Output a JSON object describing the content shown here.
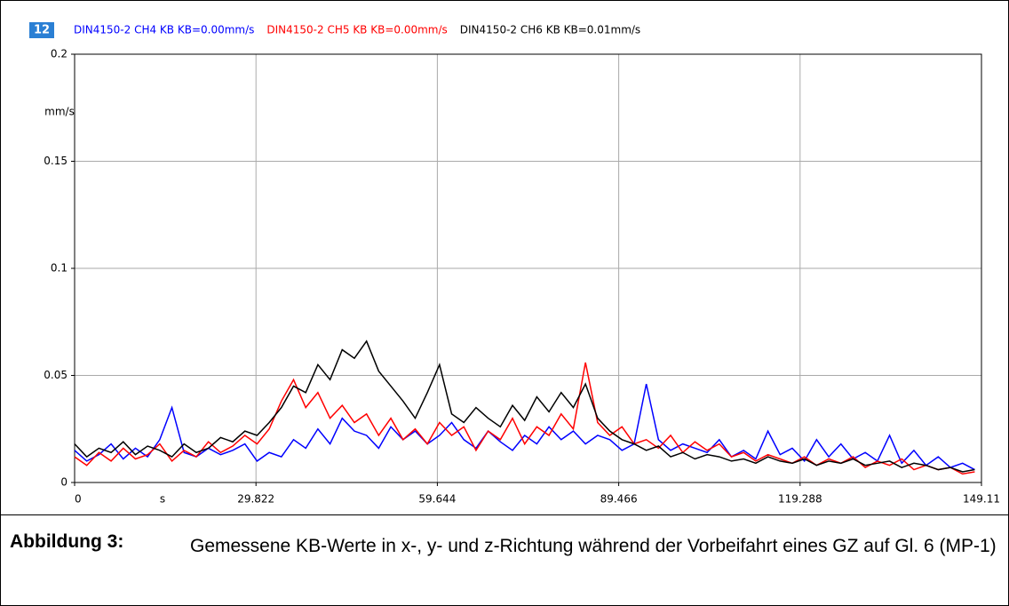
{
  "chart_data": {
    "type": "line",
    "panel_number": "12",
    "y_unit": "mm/s",
    "x_unit": "s",
    "x": [
      0,
      2,
      4,
      6,
      8,
      10,
      12,
      14,
      16,
      18,
      20,
      22,
      24,
      26,
      28,
      30,
      32,
      34,
      36,
      38,
      40,
      42,
      44,
      46,
      48,
      50,
      52,
      54,
      56,
      58,
      60,
      62,
      64,
      66,
      68,
      70,
      72,
      74,
      76,
      78,
      80,
      82,
      84,
      86,
      88,
      90,
      92,
      94,
      96,
      98,
      100,
      102,
      104,
      106,
      108,
      110,
      112,
      114,
      116,
      118,
      120,
      122,
      124,
      126,
      128,
      130,
      132,
      134,
      136,
      138,
      140,
      142,
      144,
      146,
      148
    ],
    "series": [
      {
        "name": "DIN4150-2 CH4 KB KB=0.00mm/s",
        "color": "#0000ff",
        "values": [
          0.015,
          0.01,
          0.013,
          0.018,
          0.011,
          0.016,
          0.012,
          0.02,
          0.035,
          0.014,
          0.012,
          0.016,
          0.013,
          0.015,
          0.018,
          0.01,
          0.014,
          0.012,
          0.02,
          0.016,
          0.025,
          0.018,
          0.03,
          0.024,
          0.022,
          0.016,
          0.026,
          0.02,
          0.024,
          0.018,
          0.022,
          0.028,
          0.02,
          0.016,
          0.024,
          0.019,
          0.015,
          0.022,
          0.018,
          0.026,
          0.02,
          0.024,
          0.018,
          0.022,
          0.02,
          0.015,
          0.018,
          0.046,
          0.02,
          0.015,
          0.018,
          0.016,
          0.014,
          0.02,
          0.012,
          0.015,
          0.011,
          0.024,
          0.013,
          0.016,
          0.01,
          0.02,
          0.012,
          0.018,
          0.011,
          0.014,
          0.01,
          0.022,
          0.009,
          0.015,
          0.008,
          0.012,
          0.007,
          0.009,
          0.006
        ]
      },
      {
        "name": "DIN4150-2 CH5 KB KB=0.00mm/s",
        "color": "#ff0000",
        "values": [
          0.012,
          0.008,
          0.014,
          0.01,
          0.016,
          0.011,
          0.013,
          0.018,
          0.01,
          0.015,
          0.012,
          0.019,
          0.014,
          0.017,
          0.022,
          0.018,
          0.025,
          0.038,
          0.048,
          0.035,
          0.042,
          0.03,
          0.036,
          0.028,
          0.032,
          0.022,
          0.03,
          0.02,
          0.025,
          0.018,
          0.028,
          0.022,
          0.026,
          0.015,
          0.024,
          0.02,
          0.03,
          0.018,
          0.026,
          0.022,
          0.032,
          0.025,
          0.056,
          0.028,
          0.022,
          0.026,
          0.018,
          0.02,
          0.016,
          0.022,
          0.014,
          0.019,
          0.015,
          0.018,
          0.012,
          0.014,
          0.01,
          0.013,
          0.011,
          0.009,
          0.012,
          0.008,
          0.011,
          0.009,
          0.012,
          0.007,
          0.01,
          0.008,
          0.011,
          0.006,
          0.008,
          0.006,
          0.007,
          0.004,
          0.005
        ]
      },
      {
        "name": "DIN4150-2 CH6 KB KB=0.01mm/s",
        "color": "#000000",
        "values": [
          0.018,
          0.012,
          0.016,
          0.014,
          0.019,
          0.013,
          0.017,
          0.015,
          0.012,
          0.018,
          0.014,
          0.016,
          0.021,
          0.019,
          0.024,
          0.022,
          0.028,
          0.035,
          0.045,
          0.042,
          0.055,
          0.048,
          0.062,
          0.058,
          0.066,
          0.052,
          0.045,
          0.038,
          0.03,
          0.042,
          0.055,
          0.032,
          0.028,
          0.035,
          0.03,
          0.026,
          0.036,
          0.029,
          0.04,
          0.033,
          0.042,
          0.035,
          0.046,
          0.03,
          0.024,
          0.02,
          0.018,
          0.015,
          0.017,
          0.012,
          0.014,
          0.011,
          0.013,
          0.012,
          0.01,
          0.011,
          0.009,
          0.012,
          0.01,
          0.009,
          0.011,
          0.008,
          0.01,
          0.009,
          0.011,
          0.008,
          0.009,
          0.01,
          0.007,
          0.009,
          0.008,
          0.006,
          0.007,
          0.005,
          0.006
        ]
      }
    ],
    "xlim": [
      0,
      149.11
    ],
    "xticks": [
      0,
      29.822,
      59.644,
      89.466,
      119.288,
      149.11
    ],
    "ylim": [
      0,
      0.2
    ],
    "yticks": [
      0,
      0.05,
      0.1,
      0.15,
      0.2
    ],
    "grid": true
  },
  "caption": {
    "label": "Abbildung 3:",
    "text": "Gemessene KB-Werte in x-, y- und z-Richtung während der Vorbeifahrt eines GZ auf Gl. 6 (MP-1)"
  }
}
